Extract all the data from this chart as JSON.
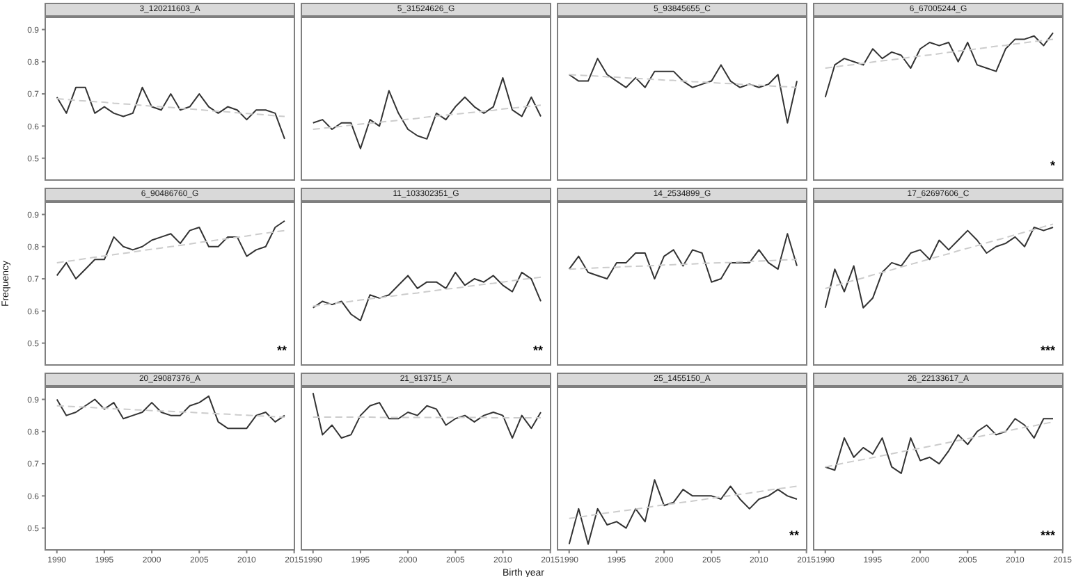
{
  "chart_data": [
    {
      "type": "line",
      "title": "3_120211603_A",
      "tick_labels": "y",
      "xlim": [
        1988.7,
        2015.1
      ],
      "ylim": [
        0.43,
        0.94
      ],
      "xticks": [
        1990,
        1995,
        2000,
        2005,
        2010,
        2015
      ],
      "yticks": [
        0.5,
        0.6,
        0.7,
        0.8,
        0.9
      ],
      "x": [
        1990,
        1991,
        1992,
        1993,
        1994,
        1995,
        1996,
        1997,
        1998,
        1999,
        2000,
        2001,
        2002,
        2003,
        2004,
        2005,
        2006,
        2007,
        2008,
        2009,
        2010,
        2011,
        2012,
        2013,
        2014
      ],
      "series": [
        {
          "color": "#333333",
          "values": [
            0.69,
            0.64,
            0.72,
            0.72,
            0.64,
            0.66,
            0.64,
            0.63,
            0.64,
            0.72,
            0.66,
            0.65,
            0.7,
            0.65,
            0.66,
            0.7,
            0.66,
            0.64,
            0.66,
            0.65,
            0.62,
            0.65,
            0.65,
            0.64,
            0.56
          ]
        },
        {
          "type": "line",
          "color": "#cccccc",
          "line_style": "dashed",
          "values": [
            0.685,
            0.683,
            0.68,
            0.678,
            0.676,
            0.674,
            0.671,
            0.669,
            0.667,
            0.664,
            0.662,
            0.66,
            0.658,
            0.655,
            0.653,
            0.651,
            0.648,
            0.646,
            0.644,
            0.641,
            0.639,
            0.637,
            0.635,
            0.632,
            0.63
          ]
        }
      ]
    },
    {
      "type": "line",
      "title": "5_31524626_G",
      "tick_labels": false,
      "xlim": [
        1988.7,
        2015.1
      ],
      "ylim": [
        0.43,
        0.94
      ],
      "xticks": [
        1990,
        1995,
        2000,
        2005,
        2010,
        2015
      ],
      "yticks": [
        0.5,
        0.6,
        0.7,
        0.8,
        0.9
      ],
      "x": [
        1990,
        1991,
        1992,
        1993,
        1994,
        1995,
        1996,
        1997,
        1998,
        1999,
        2000,
        2001,
        2002,
        2003,
        2004,
        2005,
        2006,
        2007,
        2008,
        2009,
        2010,
        2011,
        2012,
        2013,
        2014
      ],
      "series": [
        {
          "color": "#333333",
          "values": [
            0.61,
            0.62,
            0.59,
            0.61,
            0.61,
            0.53,
            0.62,
            0.6,
            0.71,
            0.64,
            0.59,
            0.57,
            0.56,
            0.64,
            0.62,
            0.66,
            0.69,
            0.66,
            0.64,
            0.66,
            0.75,
            0.65,
            0.63,
            0.69,
            0.63
          ]
        },
        {
          "type": "line",
          "color": "#cccccc",
          "line_style": "dashed",
          "values": [
            0.59,
            0.593,
            0.596,
            0.599,
            0.603,
            0.606,
            0.609,
            0.612,
            0.615,
            0.618,
            0.621,
            0.624,
            0.628,
            0.631,
            0.634,
            0.637,
            0.64,
            0.643,
            0.646,
            0.649,
            0.653,
            0.656,
            0.659,
            0.662,
            0.665
          ]
        }
      ]
    },
    {
      "type": "line",
      "title": "5_93845655_C",
      "tick_labels": false,
      "xlim": [
        1988.7,
        2015.1
      ],
      "ylim": [
        0.43,
        0.94
      ],
      "xticks": [
        1990,
        1995,
        2000,
        2005,
        2010,
        2015
      ],
      "yticks": [
        0.5,
        0.6,
        0.7,
        0.8,
        0.9
      ],
      "x": [
        1990,
        1991,
        1992,
        1993,
        1994,
        1995,
        1996,
        1997,
        1998,
        1999,
        2000,
        2001,
        2002,
        2003,
        2004,
        2005,
        2006,
        2007,
        2008,
        2009,
        2010,
        2011,
        2012,
        2013,
        2014
      ],
      "series": [
        {
          "color": "#333333",
          "values": [
            0.76,
            0.74,
            0.74,
            0.81,
            0.76,
            0.74,
            0.72,
            0.75,
            0.72,
            0.77,
            0.77,
            0.77,
            0.74,
            0.72,
            0.73,
            0.74,
            0.79,
            0.74,
            0.72,
            0.73,
            0.72,
            0.73,
            0.76,
            0.61,
            0.74
          ]
        },
        {
          "type": "line",
          "color": "#cccccc",
          "line_style": "dashed",
          "values": [
            0.76,
            0.758,
            0.757,
            0.755,
            0.753,
            0.752,
            0.75,
            0.748,
            0.747,
            0.745,
            0.743,
            0.742,
            0.74,
            0.738,
            0.737,
            0.735,
            0.733,
            0.732,
            0.73,
            0.728,
            0.727,
            0.725,
            0.723,
            0.722,
            0.72
          ]
        }
      ]
    },
    {
      "type": "line",
      "title": "6_67005244_G",
      "tick_labels": false,
      "annotations": [
        "*"
      ],
      "xlim": [
        1988.7,
        2015.1
      ],
      "ylim": [
        0.43,
        0.94
      ],
      "xticks": [
        1990,
        1995,
        2000,
        2005,
        2010,
        2015
      ],
      "yticks": [
        0.5,
        0.6,
        0.7,
        0.8,
        0.9
      ],
      "x": [
        1990,
        1991,
        1992,
        1993,
        1994,
        1995,
        1996,
        1997,
        1998,
        1999,
        2000,
        2001,
        2002,
        2003,
        2004,
        2005,
        2006,
        2007,
        2008,
        2009,
        2010,
        2011,
        2012,
        2013,
        2014
      ],
      "series": [
        {
          "color": "#333333",
          "values": [
            0.69,
            0.79,
            0.81,
            0.8,
            0.79,
            0.84,
            0.81,
            0.83,
            0.82,
            0.78,
            0.84,
            0.86,
            0.85,
            0.86,
            0.8,
            0.86,
            0.79,
            0.78,
            0.77,
            0.84,
            0.87,
            0.87,
            0.88,
            0.85,
            0.89
          ]
        },
        {
          "type": "line",
          "color": "#cccccc",
          "line_style": "dashed",
          "values": [
            0.78,
            0.784,
            0.788,
            0.791,
            0.795,
            0.799,
            0.803,
            0.806,
            0.81,
            0.814,
            0.818,
            0.821,
            0.825,
            0.829,
            0.833,
            0.836,
            0.84,
            0.844,
            0.848,
            0.851,
            0.855,
            0.859,
            0.863,
            0.866,
            0.87
          ]
        }
      ]
    },
    {
      "type": "line",
      "title": "6_90486760_G",
      "ylabel": "Frequency",
      "tick_labels": "y",
      "annotations": [
        "**"
      ],
      "xlim": [
        1988.7,
        2015.1
      ],
      "ylim": [
        0.43,
        0.94
      ],
      "xticks": [
        1990,
        1995,
        2000,
        2005,
        2010,
        2015
      ],
      "yticks": [
        0.5,
        0.6,
        0.7,
        0.8,
        0.9
      ],
      "x": [
        1990,
        1991,
        1992,
        1993,
        1994,
        1995,
        1996,
        1997,
        1998,
        1999,
        2000,
        2001,
        2002,
        2003,
        2004,
        2005,
        2006,
        2007,
        2008,
        2009,
        2010,
        2011,
        2012,
        2013,
        2014
      ],
      "series": [
        {
          "color": "#333333",
          "values": [
            0.71,
            0.75,
            0.7,
            0.73,
            0.76,
            0.76,
            0.83,
            0.8,
            0.79,
            0.8,
            0.82,
            0.83,
            0.84,
            0.81,
            0.85,
            0.86,
            0.8,
            0.8,
            0.83,
            0.83,
            0.77,
            0.79,
            0.8,
            0.86,
            0.88
          ]
        },
        {
          "type": "line",
          "color": "#cccccc",
          "line_style": "dashed",
          "values": [
            0.75,
            0.754,
            0.758,
            0.763,
            0.767,
            0.771,
            0.775,
            0.779,
            0.783,
            0.788,
            0.792,
            0.796,
            0.8,
            0.804,
            0.808,
            0.813,
            0.817,
            0.821,
            0.825,
            0.829,
            0.833,
            0.838,
            0.842,
            0.846,
            0.85
          ]
        }
      ]
    },
    {
      "type": "line",
      "title": "11_103302351_G",
      "tick_labels": false,
      "annotations": [
        "**"
      ],
      "xlim": [
        1988.7,
        2015.1
      ],
      "ylim": [
        0.43,
        0.94
      ],
      "xticks": [
        1990,
        1995,
        2000,
        2005,
        2010,
        2015
      ],
      "yticks": [
        0.5,
        0.6,
        0.7,
        0.8,
        0.9
      ],
      "x": [
        1990,
        1991,
        1992,
        1993,
        1994,
        1995,
        1996,
        1997,
        1998,
        1999,
        2000,
        2001,
        2002,
        2003,
        2004,
        2005,
        2006,
        2007,
        2008,
        2009,
        2010,
        2011,
        2012,
        2013,
        2014
      ],
      "series": [
        {
          "color": "#333333",
          "values": [
            0.61,
            0.63,
            0.62,
            0.63,
            0.59,
            0.57,
            0.65,
            0.64,
            0.65,
            0.68,
            0.71,
            0.67,
            0.69,
            0.69,
            0.67,
            0.72,
            0.68,
            0.7,
            0.69,
            0.71,
            0.68,
            0.66,
            0.72,
            0.7,
            0.63
          ]
        },
        {
          "type": "line",
          "color": "#cccccc",
          "line_style": "dashed",
          "values": [
            0.615,
            0.619,
            0.623,
            0.626,
            0.63,
            0.634,
            0.638,
            0.641,
            0.645,
            0.649,
            0.653,
            0.656,
            0.66,
            0.664,
            0.668,
            0.671,
            0.675,
            0.679,
            0.683,
            0.686,
            0.69,
            0.694,
            0.698,
            0.701,
            0.705
          ]
        }
      ]
    },
    {
      "type": "line",
      "title": "14_2534899_G",
      "tick_labels": false,
      "xlim": [
        1988.7,
        2015.1
      ],
      "ylim": [
        0.43,
        0.94
      ],
      "xticks": [
        1990,
        1995,
        2000,
        2005,
        2010,
        2015
      ],
      "yticks": [
        0.5,
        0.6,
        0.7,
        0.8,
        0.9
      ],
      "x": [
        1990,
        1991,
        1992,
        1993,
        1994,
        1995,
        1996,
        1997,
        1998,
        1999,
        2000,
        2001,
        2002,
        2003,
        2004,
        2005,
        2006,
        2007,
        2008,
        2009,
        2010,
        2011,
        2012,
        2013,
        2014
      ],
      "series": [
        {
          "color": "#333333",
          "values": [
            0.73,
            0.77,
            0.72,
            0.71,
            0.7,
            0.75,
            0.75,
            0.78,
            0.78,
            0.7,
            0.77,
            0.79,
            0.74,
            0.79,
            0.78,
            0.69,
            0.7,
            0.75,
            0.75,
            0.75,
            0.79,
            0.75,
            0.73,
            0.84,
            0.74
          ]
        },
        {
          "type": "line",
          "color": "#cccccc",
          "line_style": "dashed",
          "values": [
            0.73,
            0.731,
            0.733,
            0.734,
            0.735,
            0.736,
            0.738,
            0.739,
            0.74,
            0.741,
            0.743,
            0.744,
            0.745,
            0.746,
            0.748,
            0.749,
            0.75,
            0.751,
            0.753,
            0.754,
            0.755,
            0.756,
            0.758,
            0.759,
            0.76
          ]
        }
      ]
    },
    {
      "type": "line",
      "title": "17_62697606_C",
      "tick_labels": false,
      "annotations": [
        "***"
      ],
      "xlim": [
        1988.7,
        2015.1
      ],
      "ylim": [
        0.43,
        0.94
      ],
      "xticks": [
        1990,
        1995,
        2000,
        2005,
        2010,
        2015
      ],
      "yticks": [
        0.5,
        0.6,
        0.7,
        0.8,
        0.9
      ],
      "x": [
        1990,
        1991,
        1992,
        1993,
        1994,
        1995,
        1996,
        1997,
        1998,
        1999,
        2000,
        2001,
        2002,
        2003,
        2004,
        2005,
        2006,
        2007,
        2008,
        2009,
        2010,
        2011,
        2012,
        2013,
        2014
      ],
      "series": [
        {
          "color": "#333333",
          "values": [
            0.61,
            0.73,
            0.66,
            0.74,
            0.61,
            0.64,
            0.72,
            0.75,
            0.74,
            0.78,
            0.79,
            0.76,
            0.82,
            0.79,
            0.82,
            0.85,
            0.82,
            0.78,
            0.8,
            0.81,
            0.83,
            0.8,
            0.86,
            0.85,
            0.86
          ]
        },
        {
          "type": "line",
          "color": "#cccccc",
          "line_style": "dashed",
          "values": [
            0.67,
            0.678,
            0.687,
            0.695,
            0.703,
            0.712,
            0.72,
            0.728,
            0.737,
            0.745,
            0.753,
            0.762,
            0.77,
            0.778,
            0.787,
            0.795,
            0.803,
            0.812,
            0.82,
            0.828,
            0.837,
            0.845,
            0.853,
            0.862,
            0.87
          ]
        }
      ]
    },
    {
      "type": "line",
      "title": "20_29087376_A",
      "xlim": [
        1988.7,
        2015.1
      ],
      "ylim": [
        0.43,
        0.94
      ],
      "xticks": [
        1990,
        1995,
        2000,
        2005,
        2010,
        2015
      ],
      "yticks": [
        0.5,
        0.6,
        0.7,
        0.8,
        0.9
      ],
      "x": [
        1990,
        1991,
        1992,
        1993,
        1994,
        1995,
        1996,
        1997,
        1998,
        1999,
        2000,
        2001,
        2002,
        2003,
        2004,
        2005,
        2006,
        2007,
        2008,
        2009,
        2010,
        2011,
        2012,
        2013,
        2014
      ],
      "series": [
        {
          "color": "#333333",
          "values": [
            0.9,
            0.85,
            0.86,
            0.88,
            0.9,
            0.87,
            0.89,
            0.84,
            0.85,
            0.86,
            0.89,
            0.86,
            0.85,
            0.85,
            0.88,
            0.89,
            0.91,
            0.83,
            0.81,
            0.81,
            0.81,
            0.85,
            0.86,
            0.83,
            0.85
          ]
        },
        {
          "type": "line",
          "color": "#cccccc",
          "line_style": "dashed",
          "values": [
            0.88,
            0.879,
            0.877,
            0.876,
            0.874,
            0.873,
            0.871,
            0.87,
            0.868,
            0.867,
            0.865,
            0.864,
            0.863,
            0.861,
            0.86,
            0.858,
            0.857,
            0.855,
            0.854,
            0.852,
            0.851,
            0.849,
            0.848,
            0.846,
            0.845
          ]
        }
      ]
    },
    {
      "type": "line",
      "title": "21_913715_A",
      "xlabel": "Birth year",
      "tick_labels": "x",
      "xlim": [
        1988.7,
        2015.1
      ],
      "ylim": [
        0.43,
        0.94
      ],
      "xticks": [
        1990,
        1995,
        2000,
        2005,
        2010,
        2015
      ],
      "yticks": [
        0.5,
        0.6,
        0.7,
        0.8,
        0.9
      ],
      "x": [
        1990,
        1991,
        1992,
        1993,
        1994,
        1995,
        1996,
        1997,
        1998,
        1999,
        2000,
        2001,
        2002,
        2003,
        2004,
        2005,
        2006,
        2007,
        2008,
        2009,
        2010,
        2011,
        2012,
        2013,
        2014
      ],
      "series": [
        {
          "color": "#333333",
          "values": [
            0.92,
            0.79,
            0.82,
            0.78,
            0.79,
            0.85,
            0.88,
            0.89,
            0.84,
            0.84,
            0.86,
            0.85,
            0.88,
            0.87,
            0.82,
            0.84,
            0.85,
            0.83,
            0.85,
            0.86,
            0.85,
            0.78,
            0.85,
            0.81,
            0.86
          ]
        },
        {
          "type": "line",
          "color": "#cccccc",
          "line_style": "dashed",
          "values": [
            0.845,
            0.845,
            0.845,
            0.845,
            0.845,
            0.845,
            0.845,
            0.844,
            0.844,
            0.844,
            0.844,
            0.844,
            0.844,
            0.844,
            0.844,
            0.844,
            0.844,
            0.844,
            0.844,
            0.843,
            0.843,
            0.843,
            0.843,
            0.843,
            0.843
          ]
        }
      ]
    },
    {
      "type": "line",
      "title": "25_1455150_A",
      "tick_labels": "x",
      "annotations": [
        "**"
      ],
      "xlim": [
        1988.7,
        2015.1
      ],
      "ylim": [
        0.43,
        0.94
      ],
      "xticks": [
        1990,
        1995,
        2000,
        2005,
        2010,
        2015
      ],
      "yticks": [
        0.5,
        0.6,
        0.7,
        0.8,
        0.9
      ],
      "x": [
        1990,
        1991,
        1992,
        1993,
        1994,
        1995,
        1996,
        1997,
        1998,
        1999,
        2000,
        2001,
        2002,
        2003,
        2004,
        2005,
        2006,
        2007,
        2008,
        2009,
        2010,
        2011,
        2012,
        2013,
        2014
      ],
      "series": [
        {
          "color": "#333333",
          "values": [
            0.45,
            0.56,
            0.45,
            0.56,
            0.51,
            0.52,
            0.5,
            0.56,
            0.52,
            0.65,
            0.57,
            0.58,
            0.62,
            0.6,
            0.6,
            0.6,
            0.59,
            0.63,
            0.59,
            0.56,
            0.59,
            0.6,
            0.62,
            0.6,
            0.59
          ]
        },
        {
          "type": "line",
          "color": "#cccccc",
          "line_style": "dashed",
          "values": [
            0.53,
            0.534,
            0.538,
            0.543,
            0.547,
            0.551,
            0.555,
            0.559,
            0.563,
            0.568,
            0.572,
            0.576,
            0.58,
            0.584,
            0.588,
            0.593,
            0.597,
            0.601,
            0.605,
            0.609,
            0.613,
            0.618,
            0.622,
            0.626,
            0.63
          ]
        }
      ]
    },
    {
      "type": "line",
      "title": "26_22133617_A",
      "tick_labels": "x",
      "annotations": [
        "***"
      ],
      "xlim": [
        1988.7,
        2015.1
      ],
      "ylim": [
        0.43,
        0.94
      ],
      "xticks": [
        1990,
        1995,
        2000,
        2005,
        2010,
        2015
      ],
      "yticks": [
        0.5,
        0.6,
        0.7,
        0.8,
        0.9
      ],
      "x": [
        1990,
        1991,
        1992,
        1993,
        1994,
        1995,
        1996,
        1997,
        1998,
        1999,
        2000,
        2001,
        2002,
        2003,
        2004,
        2005,
        2006,
        2007,
        2008,
        2009,
        2010,
        2011,
        2012,
        2013,
        2014
      ],
      "series": [
        {
          "color": "#333333",
          "values": [
            0.69,
            0.68,
            0.78,
            0.72,
            0.75,
            0.73,
            0.78,
            0.69,
            0.67,
            0.78,
            0.71,
            0.72,
            0.7,
            0.74,
            0.79,
            0.76,
            0.8,
            0.82,
            0.79,
            0.8,
            0.84,
            0.82,
            0.78,
            0.84,
            0.84
          ]
        },
        {
          "type": "line",
          "color": "#cccccc",
          "line_style": "dashed",
          "values": [
            0.69,
            0.696,
            0.702,
            0.708,
            0.713,
            0.719,
            0.725,
            0.731,
            0.737,
            0.743,
            0.748,
            0.754,
            0.76,
            0.766,
            0.772,
            0.778,
            0.783,
            0.789,
            0.795,
            0.801,
            0.807,
            0.813,
            0.818,
            0.824,
            0.83
          ]
        }
      ]
    }
  ]
}
